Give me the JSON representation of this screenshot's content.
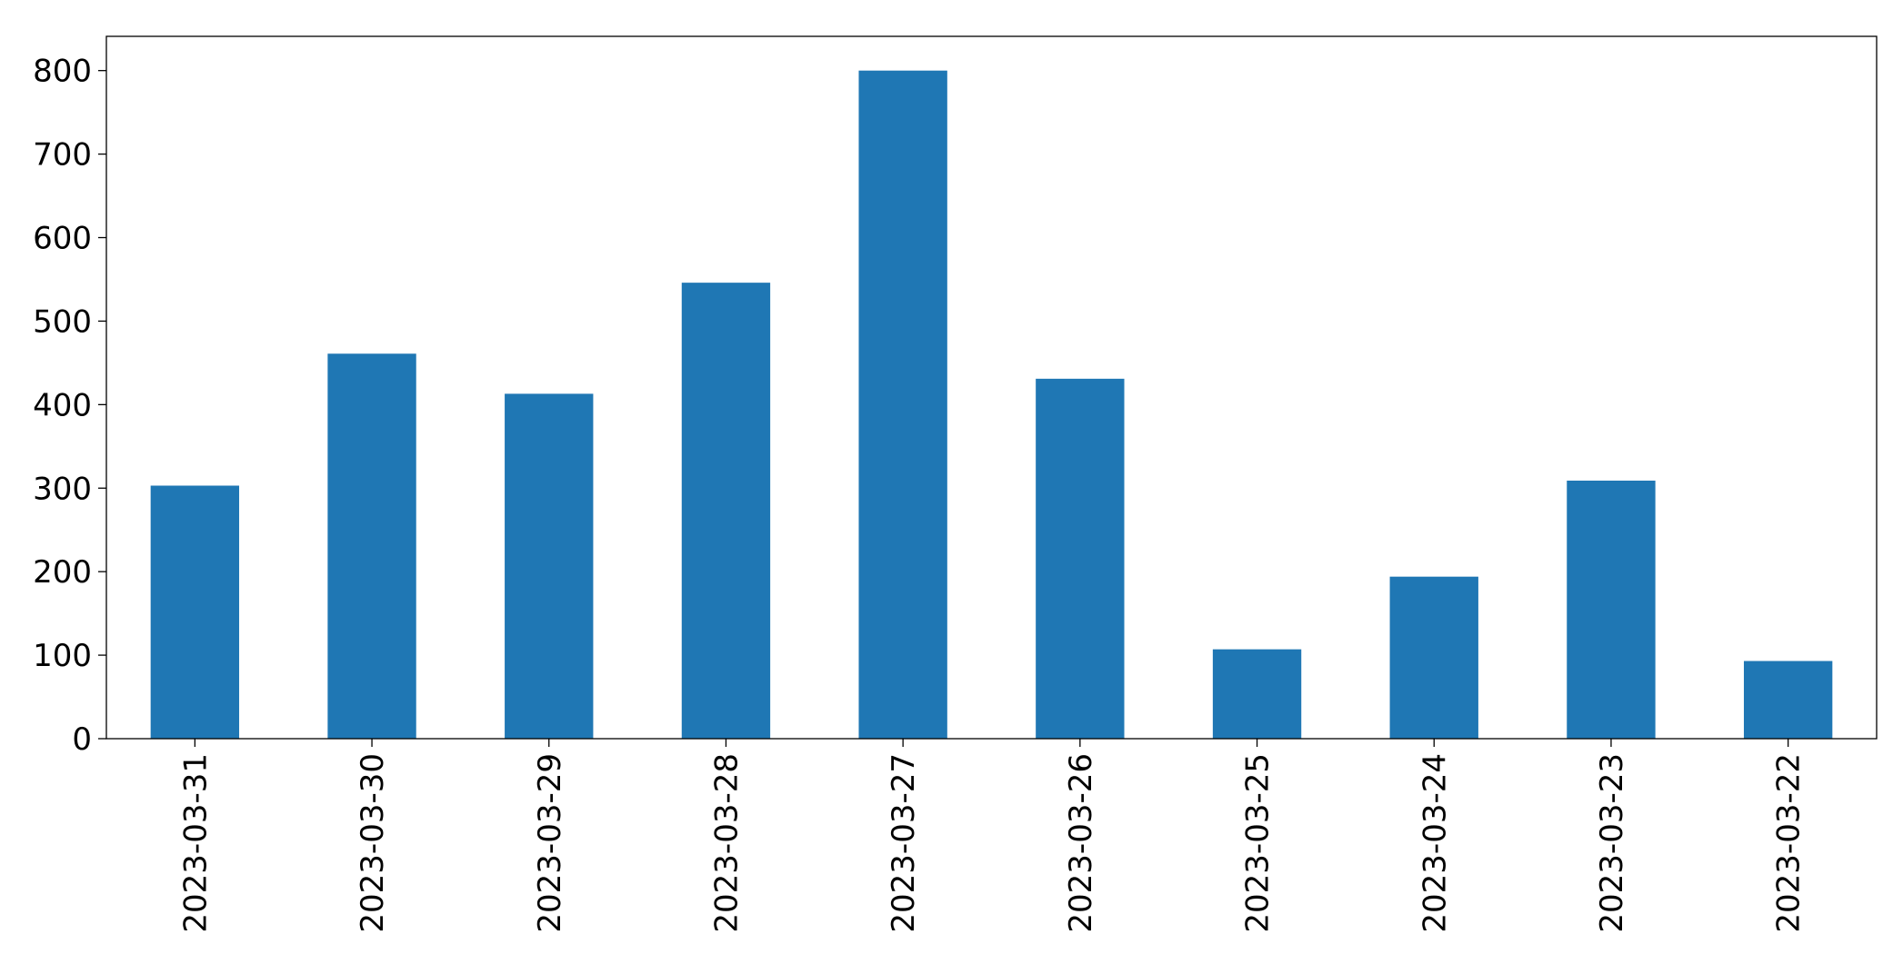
{
  "chart_data": {
    "type": "bar",
    "categories": [
      "2023-03-31",
      "2023-03-30",
      "2023-03-29",
      "2023-03-28",
      "2023-03-27",
      "2023-03-26",
      "2023-03-25",
      "2023-03-24",
      "2023-03-23",
      "2023-03-22"
    ],
    "values": [
      303,
      461,
      413,
      546,
      800,
      431,
      107,
      194,
      309,
      93
    ],
    "color": "#1f77b4",
    "ylim": [
      0,
      841
    ],
    "yticks": [
      0,
      100,
      200,
      300,
      400,
      500,
      600,
      700,
      800
    ],
    "grid": false
  }
}
